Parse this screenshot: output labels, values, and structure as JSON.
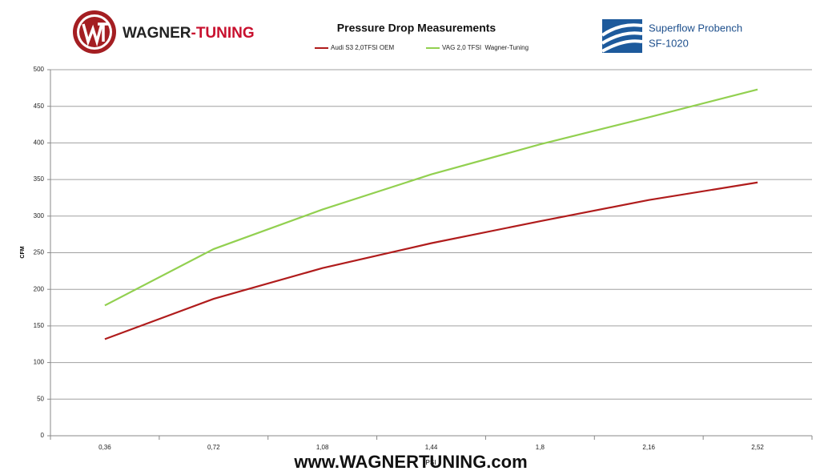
{
  "header": {
    "brand_main": "WAGNER",
    "brand_accent": "-TUNING",
    "bench_name": "Superflow Probench",
    "bench_model": "SF-1020"
  },
  "watermark": "www.WAGNERTUNING.com",
  "chart_data": {
    "type": "line",
    "title": "Pressure Drop Measurements",
    "x_label": "PSI",
    "y_label": "CFM",
    "categories": [
      "0,36",
      "0,72",
      "1,08",
      "1,44",
      "1,8",
      "2,16",
      "2,52"
    ],
    "series": [
      {
        "name": "Audi S3 2,0TFSI OEM",
        "color": "#b01c1c",
        "values": [
          132,
          187,
          229,
          263,
          293,
          322,
          346
        ]
      },
      {
        "name": "VAG 2,0 TFSI  Wagner-Tuning",
        "color": "#92d050",
        "values": [
          178,
          255,
          309,
          357,
          398,
          435,
          473
        ]
      }
    ],
    "ylim": [
      0,
      500
    ],
    "yticks": [
      0,
      50,
      100,
      150,
      200,
      250,
      300,
      350,
      400,
      450,
      500
    ],
    "grid": true
  }
}
